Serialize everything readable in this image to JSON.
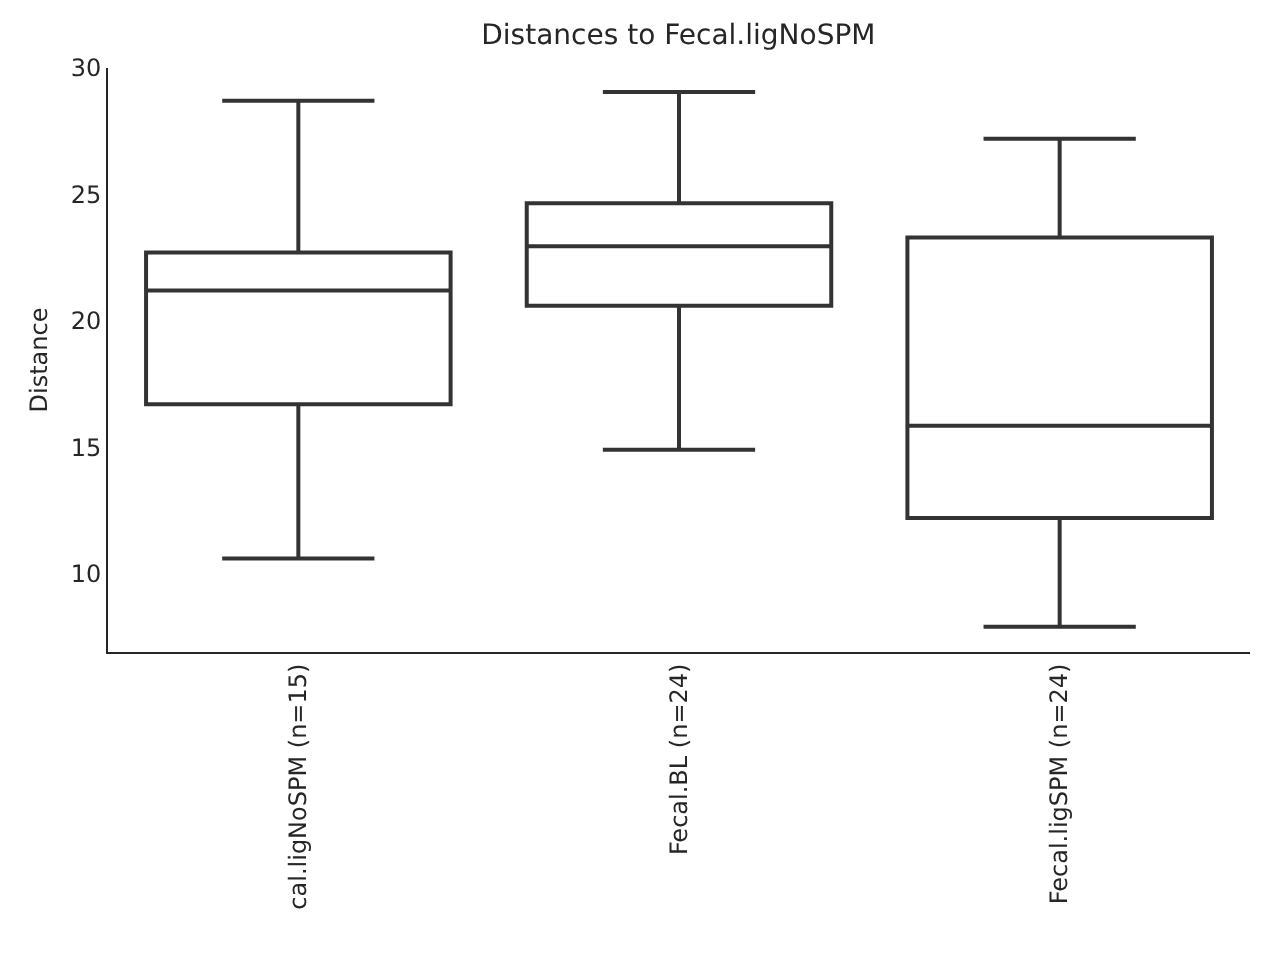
{
  "chart_data": {
    "type": "box",
    "title": "Distances to Fecal.ligNoSPM",
    "ylabel": "Distance",
    "categories": [
      "cal.ligNoSPM (n=15)",
      "Fecal.BL (n=24)",
      "Fecal.ligSPM (n=24)"
    ],
    "boxes": [
      {
        "low": 10.6,
        "q1": 16.7,
        "median": 21.2,
        "q3": 22.7,
        "high": 28.7
      },
      {
        "low": 14.9,
        "q1": 20.6,
        "median": 22.95,
        "q3": 24.65,
        "high": 29.05
      },
      {
        "low": 7.9,
        "q1": 12.2,
        "median": 15.85,
        "q3": 23.3,
        "high": 27.2
      }
    ],
    "color": "#333333",
    "ylim": [
      6.9,
      30
    ],
    "yticks": [
      10,
      15,
      20,
      25,
      30
    ],
    "grid": false
  }
}
